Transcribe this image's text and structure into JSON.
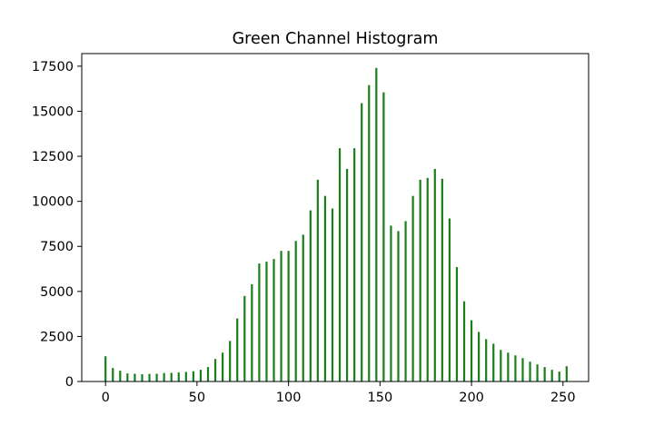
{
  "chart_data": {
    "type": "bar",
    "title": "Green Channel Histogram",
    "xlabel": "",
    "ylabel": "",
    "xlim": [
      -13,
      264
    ],
    "ylim": [
      0,
      18200
    ],
    "xticks": [
      0,
      50,
      100,
      150,
      200,
      250
    ],
    "yticks": [
      0,
      2500,
      5000,
      7500,
      10000,
      12500,
      15000,
      17500
    ],
    "bar_color": "#1a7f1a",
    "grid": false,
    "legend": "none",
    "series": [
      {
        "x": [
          0,
          4,
          8,
          12,
          16,
          20,
          24,
          28,
          32,
          36,
          40,
          44,
          48,
          52,
          56,
          60,
          64,
          68,
          72,
          76,
          80,
          84,
          88,
          92,
          96,
          100,
          104,
          108,
          112,
          116,
          120,
          124,
          128,
          132,
          136,
          140,
          144,
          148,
          152,
          156,
          160,
          164,
          168,
          172,
          176,
          180,
          184,
          188,
          192,
          196,
          200,
          204,
          208,
          212,
          216,
          220,
          224,
          228,
          232,
          236,
          240,
          244,
          248,
          252
        ],
        "values": [
          1400,
          750,
          600,
          450,
          430,
          400,
          420,
          430,
          470,
          480,
          500,
          530,
          570,
          650,
          800,
          1250,
          1600,
          2250,
          3500,
          4750,
          5400,
          6550,
          6650,
          6800,
          7250,
          7250,
          7800,
          8150,
          9500,
          11200,
          10300,
          9600,
          12950,
          11800,
          12950,
          15450,
          16450,
          17400,
          16050,
          8650,
          8350,
          8900,
          10300,
          11200,
          11300,
          11800,
          11250,
          9050,
          6350,
          4450,
          3400,
          2750,
          2350,
          2100,
          1750,
          1600,
          1450,
          1300,
          1100,
          950,
          800,
          650,
          550,
          850
        ]
      }
    ]
  }
}
